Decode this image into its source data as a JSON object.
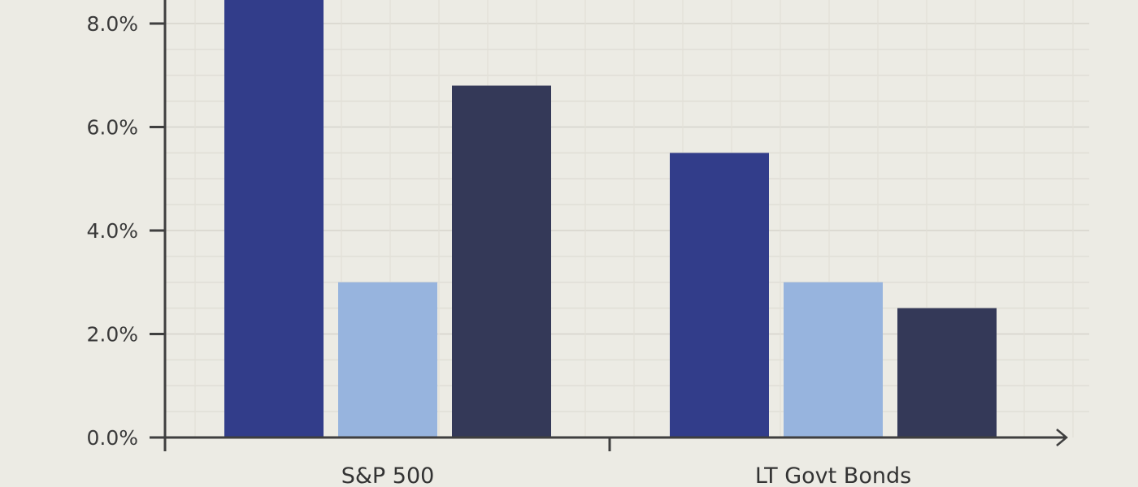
{
  "chart_data": {
    "type": "bar",
    "categories": [
      "S&P 500",
      "LT Govt Bonds"
    ],
    "series": [
      {
        "values": [
          8.6,
          5.5
        ],
        "color": "#323d8a"
      },
      {
        "values": [
          3.0,
          3.0
        ],
        "color": "#97b4de"
      },
      {
        "values": [
          6.8,
          2.5
        ],
        "color": "#343958"
      }
    ],
    "yticks": [
      "0.0%",
      "2.0%",
      "4.0%",
      "6.0%",
      "8.0%"
    ],
    "ytick_values": [
      0,
      2,
      4,
      6,
      8
    ],
    "ylim": [
      0,
      8.5
    ],
    "grid": true,
    "legend": "none",
    "xlabel": "",
    "ylabel": "",
    "title": ""
  },
  "colors": {
    "background": "#ecebe4",
    "grid": "#d9d7cf",
    "axis": "#3f3f3f",
    "text": "#333333"
  }
}
